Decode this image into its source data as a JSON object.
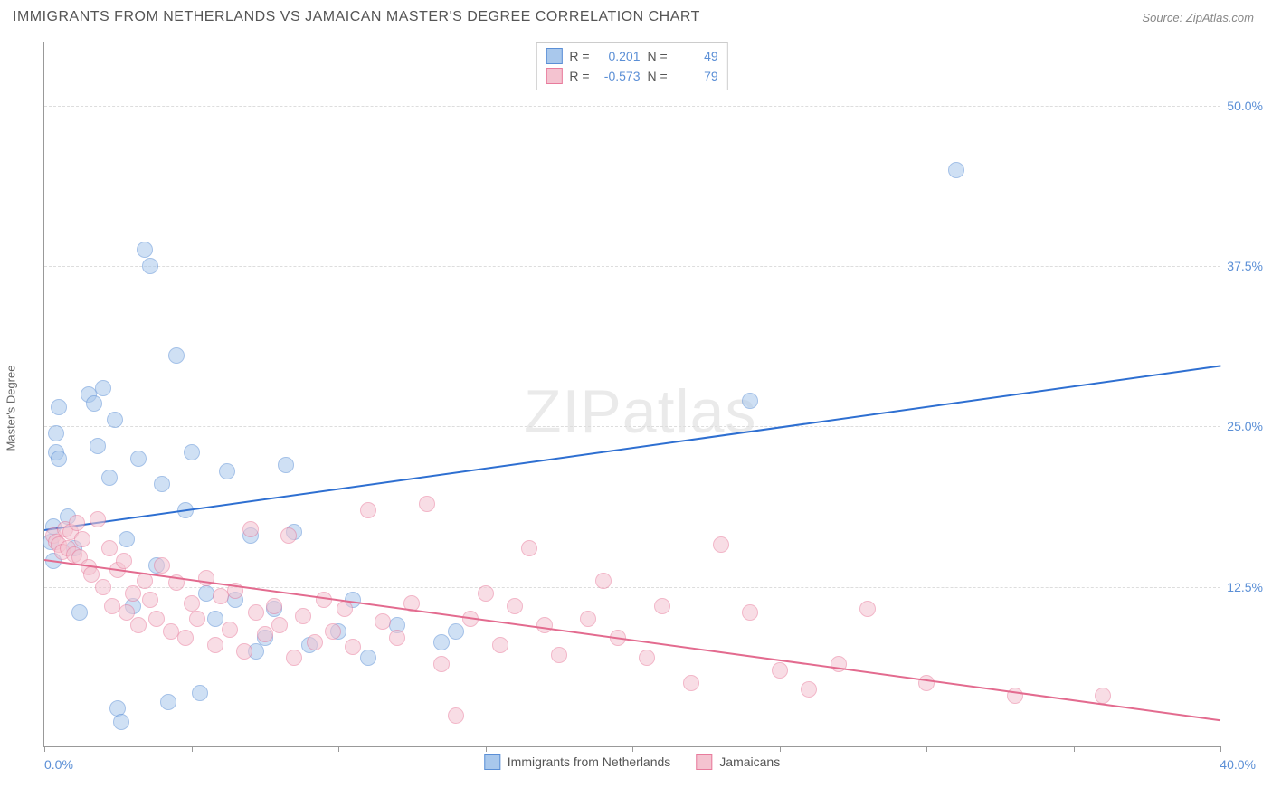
{
  "header": {
    "title": "IMMIGRANTS FROM NETHERLANDS VS JAMAICAN MASTER'S DEGREE CORRELATION CHART",
    "source_label": "Source:",
    "source_name": "ZipAtlas.com"
  },
  "watermark": {
    "bold": "ZIP",
    "thin": "atlas"
  },
  "chart": {
    "type": "scatter",
    "xlim": [
      0,
      40
    ],
    "ylim": [
      0,
      55
    ],
    "xlabel_min": "0.0%",
    "xlabel_max": "40.0%",
    "yaxis_title": "Master's Degree",
    "grid_color": "#dddddd",
    "axis_color": "#999999",
    "background": "#ffffff",
    "yticks": [
      {
        "v": 12.5,
        "label": "12.5%"
      },
      {
        "v": 25.0,
        "label": "25.0%"
      },
      {
        "v": 37.5,
        "label": "37.5%"
      },
      {
        "v": 50.0,
        "label": "50.0%"
      }
    ],
    "xticks": [
      0,
      5,
      10,
      15,
      20,
      25,
      30,
      35,
      40
    ],
    "marker_radius": 9,
    "marker_opacity": 0.55,
    "series": [
      {
        "id": "netherlands",
        "label": "Immigrants from Netherlands",
        "fill": "#a9c8ec",
        "stroke": "#5b8fd6",
        "trend_color": "#2e6fd1",
        "R": "0.201",
        "N": "49",
        "trend": {
          "x1": 0,
          "y1": 17.0,
          "x2": 40,
          "y2": 29.8
        },
        "points": [
          [
            0.2,
            16.0
          ],
          [
            0.3,
            17.2
          ],
          [
            0.3,
            14.5
          ],
          [
            0.4,
            23.0
          ],
          [
            0.4,
            24.5
          ],
          [
            0.5,
            22.5
          ],
          [
            0.5,
            26.5
          ],
          [
            0.8,
            18.0
          ],
          [
            1.0,
            15.5
          ],
          [
            1.2,
            10.5
          ],
          [
            1.5,
            27.5
          ],
          [
            1.7,
            26.8
          ],
          [
            1.8,
            23.5
          ],
          [
            2.0,
            28.0
          ],
          [
            2.2,
            21.0
          ],
          [
            2.4,
            25.5
          ],
          [
            2.5,
            3.0
          ],
          [
            2.6,
            2.0
          ],
          [
            2.8,
            16.2
          ],
          [
            3.0,
            11.0
          ],
          [
            3.2,
            22.5
          ],
          [
            3.4,
            38.8
          ],
          [
            3.6,
            37.5
          ],
          [
            3.8,
            14.2
          ],
          [
            4.0,
            20.5
          ],
          [
            4.2,
            3.5
          ],
          [
            4.5,
            30.5
          ],
          [
            4.8,
            18.5
          ],
          [
            5.0,
            23.0
          ],
          [
            5.3,
            4.2
          ],
          [
            5.5,
            12.0
          ],
          [
            5.8,
            10.0
          ],
          [
            6.2,
            21.5
          ],
          [
            6.5,
            11.5
          ],
          [
            7.0,
            16.5
          ],
          [
            7.2,
            7.5
          ],
          [
            7.5,
            8.5
          ],
          [
            7.8,
            10.8
          ],
          [
            8.2,
            22.0
          ],
          [
            8.5,
            16.8
          ],
          [
            9.0,
            8.0
          ],
          [
            10.0,
            9.0
          ],
          [
            10.5,
            11.5
          ],
          [
            11.0,
            7.0
          ],
          [
            12.0,
            9.5
          ],
          [
            13.5,
            8.2
          ],
          [
            14.0,
            9.0
          ],
          [
            24.0,
            27.0
          ],
          [
            31.0,
            45.0
          ]
        ]
      },
      {
        "id": "jamaicans",
        "label": "Jamaicans",
        "fill": "#f4c3d0",
        "stroke": "#e87b9c",
        "trend_color": "#e36b8f",
        "R": "-0.573",
        "N": "79",
        "trend": {
          "x1": 0,
          "y1": 14.7,
          "x2": 40,
          "y2": 2.2
        },
        "points": [
          [
            0.3,
            16.5
          ],
          [
            0.4,
            16.0
          ],
          [
            0.5,
            15.8
          ],
          [
            0.6,
            15.2
          ],
          [
            0.7,
            17.0
          ],
          [
            0.8,
            15.5
          ],
          [
            0.9,
            16.8
          ],
          [
            1.0,
            15.0
          ],
          [
            1.1,
            17.5
          ],
          [
            1.2,
            14.8
          ],
          [
            1.3,
            16.2
          ],
          [
            1.5,
            14.0
          ],
          [
            1.6,
            13.5
          ],
          [
            1.8,
            17.8
          ],
          [
            2.0,
            12.5
          ],
          [
            2.2,
            15.5
          ],
          [
            2.3,
            11.0
          ],
          [
            2.5,
            13.8
          ],
          [
            2.7,
            14.5
          ],
          [
            2.8,
            10.5
          ],
          [
            3.0,
            12.0
          ],
          [
            3.2,
            9.5
          ],
          [
            3.4,
            13.0
          ],
          [
            3.6,
            11.5
          ],
          [
            3.8,
            10.0
          ],
          [
            4.0,
            14.2
          ],
          [
            4.3,
            9.0
          ],
          [
            4.5,
            12.8
          ],
          [
            4.8,
            8.5
          ],
          [
            5.0,
            11.2
          ],
          [
            5.2,
            10.0
          ],
          [
            5.5,
            13.2
          ],
          [
            5.8,
            8.0
          ],
          [
            6.0,
            11.8
          ],
          [
            6.3,
            9.2
          ],
          [
            6.5,
            12.2
          ],
          [
            6.8,
            7.5
          ],
          [
            7.0,
            17.0
          ],
          [
            7.2,
            10.5
          ],
          [
            7.5,
            8.8
          ],
          [
            7.8,
            11.0
          ],
          [
            8.0,
            9.5
          ],
          [
            8.3,
            16.5
          ],
          [
            8.5,
            7.0
          ],
          [
            8.8,
            10.2
          ],
          [
            9.2,
            8.2
          ],
          [
            9.5,
            11.5
          ],
          [
            9.8,
            9.0
          ],
          [
            10.2,
            10.8
          ],
          [
            10.5,
            7.8
          ],
          [
            11.0,
            18.5
          ],
          [
            11.5,
            9.8
          ],
          [
            12.0,
            8.5
          ],
          [
            12.5,
            11.2
          ],
          [
            13.0,
            19.0
          ],
          [
            13.5,
            6.5
          ],
          [
            14.0,
            2.5
          ],
          [
            14.5,
            10.0
          ],
          [
            15.0,
            12.0
          ],
          [
            15.5,
            8.0
          ],
          [
            16.0,
            11.0
          ],
          [
            16.5,
            15.5
          ],
          [
            17.0,
            9.5
          ],
          [
            17.5,
            7.2
          ],
          [
            18.5,
            10.0
          ],
          [
            19.0,
            13.0
          ],
          [
            19.5,
            8.5
          ],
          [
            20.5,
            7.0
          ],
          [
            21.0,
            11.0
          ],
          [
            22.0,
            5.0
          ],
          [
            23.0,
            15.8
          ],
          [
            24.0,
            10.5
          ],
          [
            25.0,
            6.0
          ],
          [
            26.0,
            4.5
          ],
          [
            27.0,
            6.5
          ],
          [
            28.0,
            10.8
          ],
          [
            30.0,
            5.0
          ],
          [
            33.0,
            4.0
          ],
          [
            36.0,
            4.0
          ]
        ]
      }
    ],
    "legend_top": {
      "R_label": "R =",
      "N_label": "N ="
    }
  }
}
